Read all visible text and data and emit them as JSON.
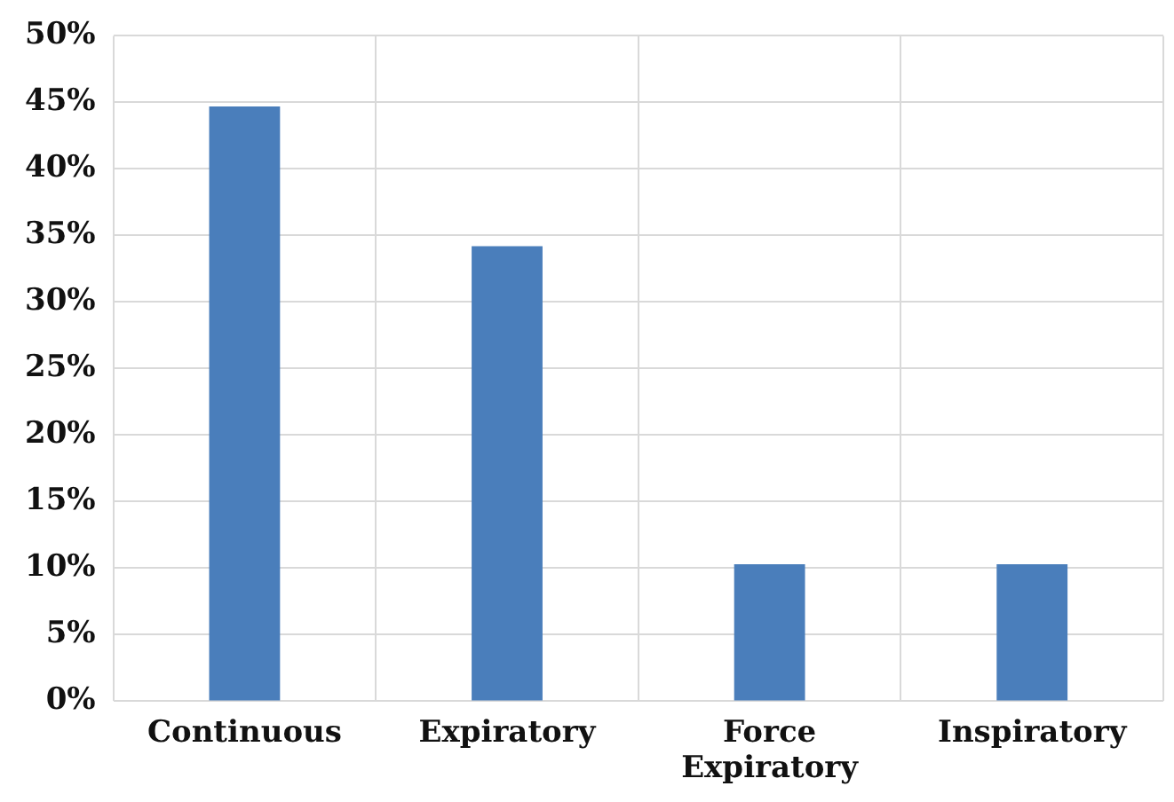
{
  "chart_data": {
    "type": "bar",
    "categories": [
      "Continuous",
      "Expiratory",
      "Force Expiratory",
      "Inspiratory"
    ],
    "values": [
      44.7,
      34.2,
      10.3,
      10.3
    ],
    "color": "#4a7ebb",
    "ylim": [
      0,
      50
    ],
    "yticks": [
      {
        "value": 0,
        "label": "0%"
      },
      {
        "value": 5,
        "label": "5%"
      },
      {
        "value": 10,
        "label": "10%"
      },
      {
        "value": 15,
        "label": "15%"
      },
      {
        "value": 20,
        "label": "20%"
      },
      {
        "value": 25,
        "label": "25%"
      },
      {
        "value": 30,
        "label": "30%"
      },
      {
        "value": 35,
        "label": "35%"
      },
      {
        "value": 40,
        "label": "40%"
      },
      {
        "value": 45,
        "label": "45%"
      },
      {
        "value": 50,
        "label": "50%"
      }
    ],
    "grid": true
  }
}
